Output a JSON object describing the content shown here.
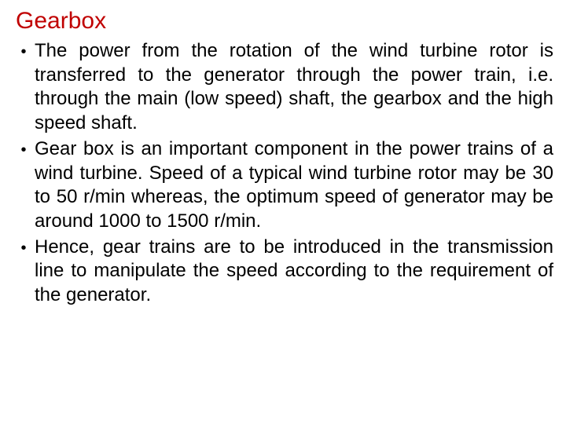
{
  "title": "Gearbox",
  "bullets": [
    {
      "text": "The power from the rotation of the wind turbine rotor is transferred to the generator through the power train, i.e. through the main (low speed) shaft, the gearbox and the high speed shaft."
    },
    {
      "text": "Gear box is an important component in the power trains of a wind turbine. Speed of a typical wind turbine rotor may be 30 to 50 r/min whereas, the optimum speed of generator may be around 1000 to 1500 r/min."
    },
    {
      "text": "Hence, gear trains are to be introduced in the transmission line to manipulate the speed according to the requirement of the generator."
    }
  ],
  "colors": {
    "title": "#c00000",
    "text": "#000000",
    "background": "#ffffff"
  },
  "typography": {
    "font_family": "Comic Sans MS",
    "title_fontsize": 30,
    "body_fontsize": 24
  }
}
